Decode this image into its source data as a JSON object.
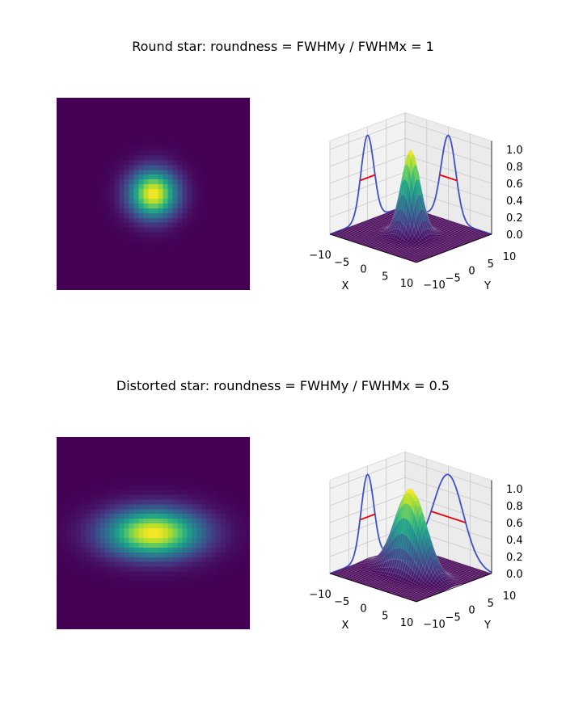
{
  "chart_data": [
    {
      "type": "heatmap+surface",
      "title": "Round star: roundness = FWHMy / FWHMx = 1",
      "roundness": 1,
      "sigma_x": 1.7,
      "sigma_y": 1.7,
      "xlabel": "X",
      "ylabel": "Y",
      "xticks": [
        "−10",
        "−5",
        "0",
        "5",
        "10"
      ],
      "yticks": [
        "−10",
        "−5",
        "0",
        "5",
        "10"
      ],
      "zticks": [
        "0.0",
        "0.2",
        "0.4",
        "0.6",
        "0.8",
        "1.0"
      ],
      "xlim": [
        -10,
        10
      ],
      "ylim": [
        -10,
        10
      ],
      "zlim": [
        0,
        1
      ],
      "colormap": "viridis",
      "profile_color": "#3f4fc6",
      "fwhm_color": "#e8000b"
    },
    {
      "type": "heatmap+surface",
      "title": "Distorted star: roundness = FWHMy / FWHMx = 0.5",
      "roundness": 0.5,
      "sigma_x": 3.4,
      "sigma_y": 1.7,
      "xlabel": "X",
      "ylabel": "Y",
      "xticks": [
        "−10",
        "−5",
        "0",
        "5",
        "10"
      ],
      "yticks": [
        "−10",
        "−5",
        "0",
        "5",
        "10"
      ],
      "zticks": [
        "0.0",
        "0.2",
        "0.4",
        "0.6",
        "0.8",
        "1.0"
      ],
      "xlim": [
        -10,
        10
      ],
      "ylim": [
        -10,
        10
      ],
      "zlim": [
        0,
        1
      ],
      "colormap": "viridis",
      "profile_color": "#3f4fc6",
      "fwhm_color": "#e8000b"
    }
  ]
}
